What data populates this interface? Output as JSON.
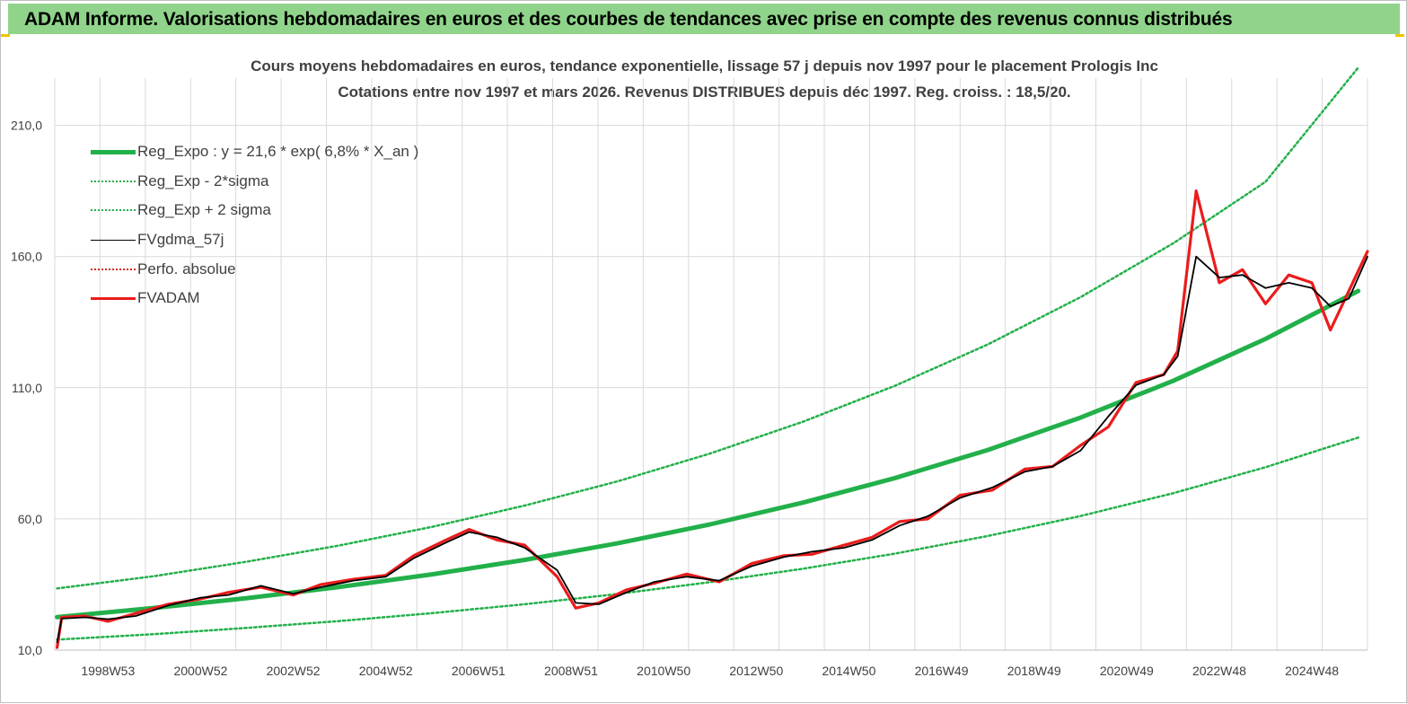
{
  "banner": {
    "title": "ADAM Informe. Valorisations hebdomadaires en euros et des courbes de tendances avec prise en compte des revenus connus distribués"
  },
  "chart_data": {
    "type": "line",
    "title": "Cours moyens hebdomadaires en euros, tendance exponentielle, lissage 57 j depuis nov 1997 pour le placement Prologis Inc",
    "subtitle": "Cotations entre nov 1997 et mars 2026. Revenus DISTRIBUES depuis déc 1997. Reg. croiss. : 18,5/20.",
    "xlabel": "",
    "ylabel": "",
    "ylim": [
      10,
      220
    ],
    "yticks": [
      10,
      60,
      110,
      160,
      210
    ],
    "ytick_labels": [
      "10,0",
      "60,0",
      "110,0",
      "160,0",
      "210,0"
    ],
    "xlim": [
      1997.85,
      2026.2
    ],
    "xticks": [
      {
        "label": "1998W53",
        "x": 1999.0
      },
      {
        "label": "2000W52",
        "x": 2001.0
      },
      {
        "label": "2002W52",
        "x": 2003.0
      },
      {
        "label": "2004W52",
        "x": 2005.0
      },
      {
        "label": "2006W51",
        "x": 2007.0
      },
      {
        "label": "2008W51",
        "x": 2009.0
      },
      {
        "label": "2010W50",
        "x": 2011.0
      },
      {
        "label": "2012W50",
        "x": 2013.0
      },
      {
        "label": "2014W50",
        "x": 2015.0
      },
      {
        "label": "2016W49",
        "x": 2017.0
      },
      {
        "label": "2018W49",
        "x": 2019.0
      },
      {
        "label": "2020W49",
        "x": 2021.0
      },
      {
        "label": "2022W48",
        "x": 2023.0
      },
      {
        "label": "2024W48",
        "x": 2025.0
      }
    ],
    "grid": true,
    "legend_position": "top-left",
    "series": [
      {
        "name": "Reg_Expo : y = 21,6 * exp( 6,8% *  X_an )",
        "color": "#22b04a",
        "style": "solid-thick",
        "x": [
          1997.9,
          2000,
          2002,
          2004,
          2006,
          2008,
          2010,
          2012,
          2014,
          2016,
          2018,
          2020,
          2022,
          2024,
          2026
        ],
        "y": [
          22.6,
          26.1,
          29.8,
          34.1,
          38.9,
          44.4,
          50.7,
          57.9,
          66.2,
          75.6,
          86.3,
          98.6,
          112.6,
          128.6,
          146.9
        ]
      },
      {
        "name": "Reg_Exp - 2*sigma",
        "color": "#22b04a",
        "style": "dotted",
        "x": [
          1997.9,
          2000,
          2002,
          2004,
          2006,
          2008,
          2010,
          2012,
          2014,
          2016,
          2018,
          2020,
          2022,
          2024,
          2026
        ],
        "y": [
          14.0,
          16.1,
          18.5,
          21.1,
          24.1,
          27.5,
          31.4,
          35.9,
          41.0,
          46.8,
          53.5,
          61.1,
          69.8,
          79.7,
          91.0
        ]
      },
      {
        "name": "Reg_Exp + 2 sigma",
        "color": "#22b04a",
        "style": "dotted",
        "x": [
          1997.9,
          2000,
          2002,
          2004,
          2006,
          2008,
          2010,
          2012,
          2014,
          2016,
          2018,
          2020,
          2022,
          2024,
          2026
        ],
        "y": [
          33.5,
          38.2,
          43.7,
          49.9,
          57.0,
          65.1,
          74.3,
          84.9,
          97.0,
          110.8,
          126.5,
          144.5,
          165.0,
          188.5,
          232.0
        ]
      },
      {
        "name": "FVgdma_57j",
        "color": "#000000",
        "style": "solid",
        "x": [
          1997.9,
          1998.0,
          1998.5,
          1999.0,
          1999.6,
          2000.3,
          2001.0,
          2001.6,
          2002.3,
          2003.0,
          2003.6,
          2004.3,
          2005.0,
          2005.6,
          2006.3,
          2006.8,
          2007.4,
          2008.0,
          2008.7,
          2009.1,
          2009.6,
          2010.2,
          2010.8,
          2011.5,
          2012.2,
          2012.9,
          2013.6,
          2014.2,
          2014.9,
          2015.5,
          2016.1,
          2016.7,
          2017.4,
          2018.1,
          2018.8,
          2019.4,
          2020.0,
          2020.6,
          2021.2,
          2021.8,
          2022.1,
          2022.5,
          2023.0,
          2023.5,
          2024.0,
          2024.5,
          2025.0,
          2025.4,
          2025.8,
          2026.2
        ],
        "y": [
          13,
          22,
          22.5,
          21.8,
          23,
          27,
          30,
          31,
          34.5,
          31.5,
          34,
          36.5,
          38,
          45,
          51,
          55,
          53,
          49,
          40.5,
          28,
          27.5,
          32,
          36,
          38,
          36.5,
          42,
          45.5,
          47.5,
          49,
          52,
          57.5,
          61,
          68,
          72,
          78,
          80,
          86,
          99,
          111,
          115,
          122,
          160,
          152,
          153,
          148,
          150,
          148,
          141,
          144,
          160
        ]
      },
      {
        "name": "Perfo. absolue",
        "color": "#e0261c",
        "style": "dotted",
        "x": [],
        "y": []
      },
      {
        "name": "FVADAM",
        "color": "#ea1c1c",
        "style": "solid-thick",
        "x": [
          1997.9,
          1998.0,
          1998.5,
          1999.0,
          1999.6,
          2000.3,
          2001.0,
          2001.6,
          2002.3,
          2003.0,
          2003.6,
          2004.3,
          2005.0,
          2005.6,
          2006.3,
          2006.8,
          2007.4,
          2008.0,
          2008.7,
          2009.1,
          2009.6,
          2010.2,
          2010.8,
          2011.5,
          2012.2,
          2012.9,
          2013.6,
          2014.2,
          2014.9,
          2015.5,
          2016.1,
          2016.7,
          2017.4,
          2018.1,
          2018.8,
          2019.4,
          2020.0,
          2020.6,
          2021.2,
          2021.8,
          2022.1,
          2022.5,
          2023.0,
          2023.5,
          2024.0,
          2024.5,
          2025.0,
          2025.4,
          2025.8,
          2026.2
        ],
        "y": [
          11,
          22.5,
          23,
          21,
          24,
          27.5,
          29.5,
          32,
          34,
          31,
          35,
          37,
          38.5,
          46,
          52,
          56,
          52,
          50,
          38,
          26,
          28,
          33,
          35.5,
          39,
          36,
          43,
          46,
          46.5,
          50,
          53,
          59,
          60,
          69,
          71,
          79,
          80,
          88,
          95,
          112,
          115,
          124,
          185,
          150,
          155,
          142,
          153,
          150,
          132,
          147,
          162
        ]
      }
    ]
  }
}
